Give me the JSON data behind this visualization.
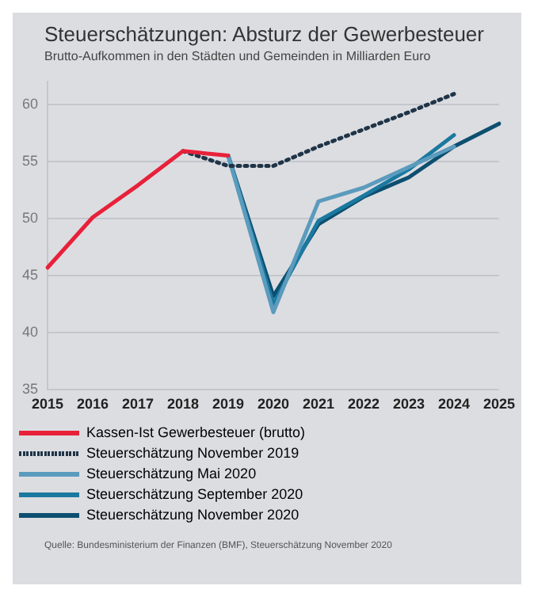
{
  "chart_data": {
    "type": "line",
    "title": "Steuerschätzungen: Absturz der Gewerbesteuer",
    "subtitle": "Brutto-Aufkommen in den Städten und Gemeinden in Milliarden Euro",
    "categories": [
      "2015",
      "2016",
      "2017",
      "2018",
      "2019",
      "2020",
      "2021",
      "2022",
      "2023",
      "2024",
      "2025"
    ],
    "series": [
      {
        "name": "Kassen-Ist Gewerbesteuer (brutto)",
        "color": "#e8213a",
        "line_style": "solid",
        "values": [
          45.7,
          50.1,
          52.9,
          55.9,
          55.5,
          null,
          null,
          null,
          null,
          null,
          null
        ]
      },
      {
        "name": "Steuerschätzung November 2019",
        "color": "#1f3447",
        "line_style": "dotted",
        "values": [
          null,
          null,
          null,
          55.9,
          54.6,
          54.6,
          56.3,
          57.8,
          59.3,
          60.9,
          null
        ]
      },
      {
        "name": "Steuerschätzung Mai 2020",
        "color": "#5b9bbd",
        "line_style": "solid",
        "values": [
          null,
          null,
          null,
          null,
          55.5,
          41.8,
          51.5,
          52.7,
          54.5,
          56.3,
          null
        ]
      },
      {
        "name": "Steuerschätzung September 2020",
        "color": "#1b79a0",
        "line_style": "solid",
        "values": [
          null,
          null,
          null,
          null,
          55.5,
          42.5,
          49.8,
          52.0,
          54.3,
          57.3,
          null
        ]
      },
      {
        "name": "Steuerschätzung November 2020",
        "color": "#0d4f70",
        "line_style": "solid",
        "values": [
          null,
          null,
          null,
          null,
          55.5,
          43.2,
          49.5,
          51.9,
          53.6,
          56.3,
          58.3
        ]
      }
    ],
    "ylim": [
      35,
      62
    ],
    "yticks": [
      35,
      40,
      45,
      50,
      55,
      60
    ],
    "grid": "y",
    "legend": "bottom",
    "marker": "none",
    "annotations": [
      "Quelle: Bundesministerium der Finanzen (BMF), Steuerschätzung November 2020"
    ]
  }
}
